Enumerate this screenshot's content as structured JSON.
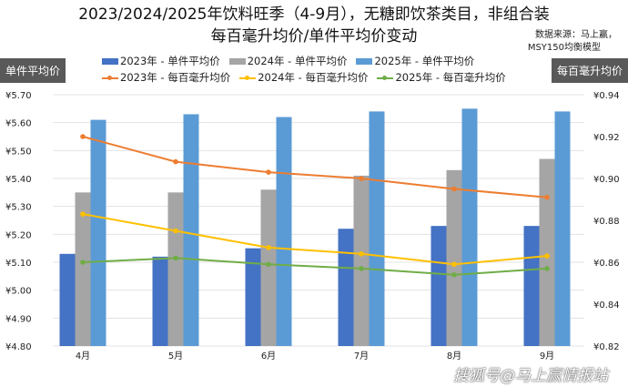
{
  "chart_data": {
    "type": "bar+line",
    "title": "2023/2024/2025年饮料旺季（4-9月），无糖即饮茶类目，非组合装",
    "subtitle": "每百毫升均价/单件平均价变动",
    "source": [
      "数据来源：马上赢，",
      "MSY150均衡模型"
    ],
    "ylabel_left": "单件平均价",
    "ylabel_right": "每百毫升均价",
    "categories": [
      "4月",
      "5月",
      "6月",
      "7月",
      "8月",
      "9月"
    ],
    "ylim_left": [
      4.8,
      5.7
    ],
    "ylim_right": [
      0.82,
      0.94
    ],
    "yticks_left": [
      "¥5.70",
      "¥5.60",
      "¥5.50",
      "¥5.40",
      "¥5.30",
      "¥5.20",
      "¥5.10",
      "¥5.00",
      "¥4.90",
      "¥4.80"
    ],
    "yticks_right": [
      "¥0.94",
      "¥0.92",
      "¥0.90",
      "¥0.88",
      "¥0.86",
      "¥0.84",
      "¥0.82"
    ],
    "legend_position": "top",
    "bar_series": [
      {
        "name": "2023年 - 单件平均价",
        "color": "#4472C4",
        "values": [
          5.13,
          5.12,
          5.15,
          5.22,
          5.23,
          5.23
        ]
      },
      {
        "name": "2024年 - 单件平均价",
        "color": "#A5A5A5",
        "values": [
          5.35,
          5.35,
          5.36,
          5.41,
          5.43,
          5.47
        ]
      },
      {
        "name": "2025年 - 单件平均价",
        "color": "#5B9BD5",
        "values": [
          5.61,
          5.63,
          5.62,
          5.64,
          5.65,
          5.64
        ]
      }
    ],
    "line_series": [
      {
        "name": "2023年 - 每百毫升均价",
        "color": "#ED7D31",
        "values": [
          0.92,
          0.908,
          0.903,
          0.9,
          0.895,
          0.891
        ]
      },
      {
        "name": "2024年 - 每百毫升均价",
        "color": "#FFC000",
        "values": [
          0.883,
          0.875,
          0.867,
          0.864,
          0.859,
          0.863
        ]
      },
      {
        "name": "2025年 - 每百毫升均价",
        "color": "#70AD47",
        "values": [
          0.86,
          0.862,
          0.859,
          0.857,
          0.854,
          0.857
        ]
      }
    ]
  },
  "watermark": "搜狐号@马上赢情报站"
}
